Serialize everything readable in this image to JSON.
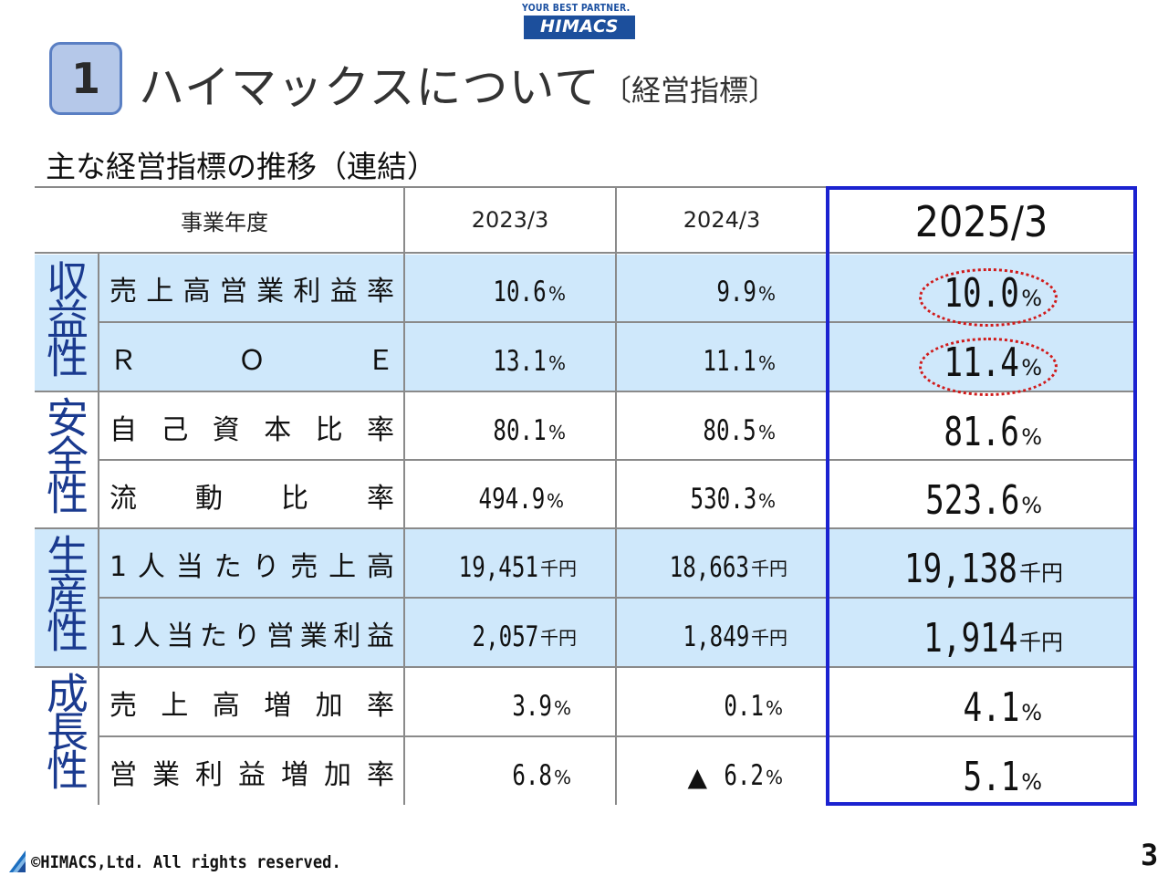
{
  "logo": {
    "tagline": "YOUR BEST PARTNER.",
    "brand": "HIMACS"
  },
  "heading": {
    "number": "1",
    "title": "ハイマックスについて",
    "subtitle": "〔経営指標〕"
  },
  "section_title": "主な経営指標の推移（連結）",
  "table": {
    "header": {
      "label": "事業年度",
      "years": [
        "2023/3",
        "2024/3",
        "2025/3"
      ]
    },
    "categories": [
      "収益性",
      "安全性",
      "生産性",
      "成長性"
    ],
    "rows": [
      {
        "label": "売上高営業利益率",
        "values": [
          "10.6",
          "9.9",
          "10.0"
        ],
        "units": [
          "%",
          "%",
          "%"
        ]
      },
      {
        "label": "ＲＯＥ",
        "values": [
          "13.1",
          "11.1",
          "11.4"
        ],
        "units": [
          "%",
          "%",
          "%"
        ]
      },
      {
        "label": "自己資本比率",
        "values": [
          "80.1",
          "80.5",
          "81.6"
        ],
        "units": [
          "%",
          "%",
          "%"
        ]
      },
      {
        "label": "流動比率",
        "values": [
          "494.9",
          "530.3",
          "523.6"
        ],
        "units": [
          "%",
          "%",
          "%"
        ]
      },
      {
        "label": "1人当たり売上高",
        "values": [
          "19,451",
          "18,663",
          "19,138"
        ],
        "units": [
          "千円",
          "千円",
          "千円"
        ]
      },
      {
        "label": "1人当たり営業利益",
        "values": [
          "2,057",
          "1,849",
          "1,914"
        ],
        "units": [
          "千円",
          "千円",
          "千円"
        ]
      },
      {
        "label": "売上高増加率",
        "values": [
          "3.9",
          "0.1",
          "4.1"
        ],
        "units": [
          "%",
          "%",
          "%"
        ]
      },
      {
        "label": "営業利益増加率",
        "values": [
          "6.8",
          "6.2",
          "5.1"
        ],
        "units": [
          "%",
          "%",
          "%"
        ],
        "negative_marker": "▲"
      }
    ]
  },
  "colors": {
    "band": "#cfe8fb",
    "frame": "#1b22d0",
    "highlight": "#d01a1a",
    "category": "#1a3a8f"
  },
  "footer": {
    "copyright": "©HIMACS,Ltd. All rights reserved.",
    "page": "3"
  }
}
